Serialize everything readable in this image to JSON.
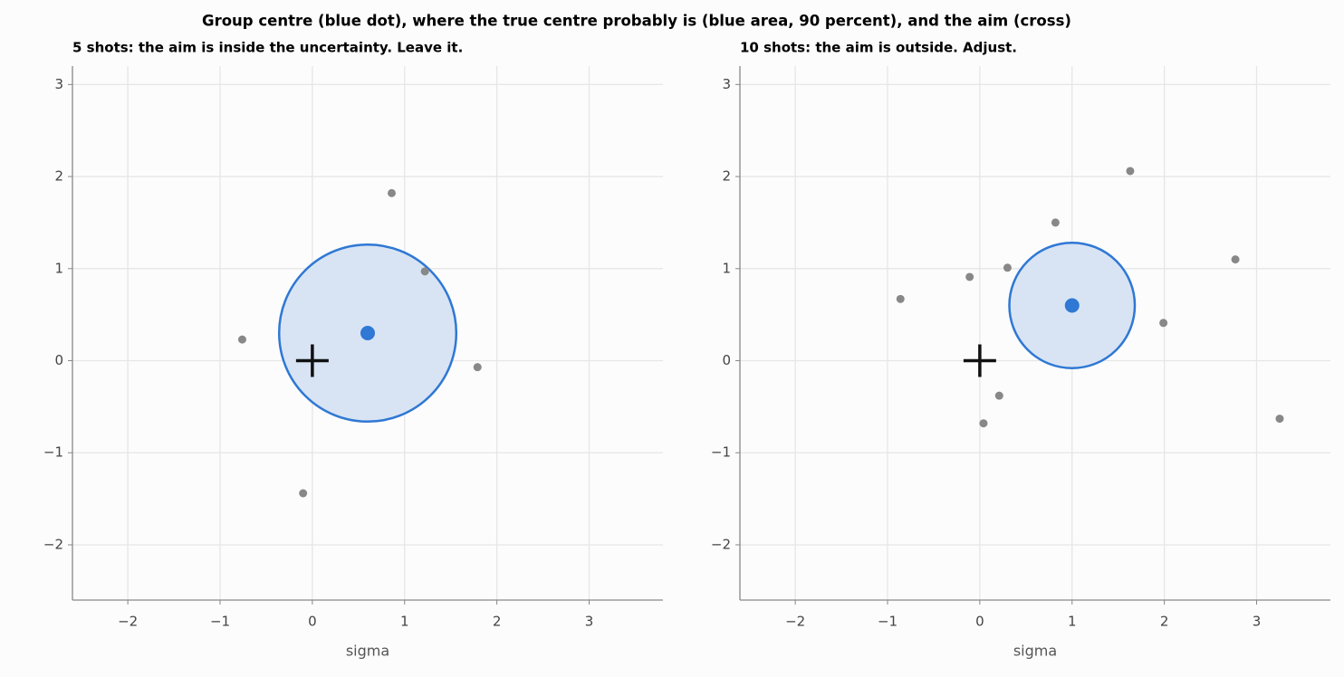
{
  "title": "Group centre (blue dot), where the true centre probably is (blue area, 90 percent), and the aim (cross)",
  "chart_data": [
    {
      "type": "scatter",
      "title": "5 shots: the aim is inside the uncertainty. Leave it.",
      "xlabel": "sigma",
      "xlim": [
        -2.6,
        3.8
      ],
      "ylim": [
        -2.6,
        3.2
      ],
      "xticks": [
        {
          "value": -2,
          "label": "−2"
        },
        {
          "value": -1,
          "label": "−1"
        },
        0,
        1,
        2,
        3
      ],
      "yticks": [
        {
          "value": -2,
          "label": "−2"
        },
        {
          "value": -1,
          "label": "−1"
        },
        0,
        1,
        2,
        3
      ],
      "grid": true,
      "shots": {
        "color": "#888888",
        "x": [
          -0.76,
          -0.1,
          0.86,
          1.22,
          1.79
        ],
        "y": [
          0.23,
          -1.44,
          1.82,
          0.97,
          -0.07
        ]
      },
      "centre": {
        "color": "#2f78d4",
        "x": 0.6,
        "y": 0.3
      },
      "radius": 0.96,
      "aim": {
        "color": "#111111",
        "x": 0,
        "y": 0
      }
    },
    {
      "type": "scatter",
      "title": "10 shots: the aim is outside. Adjust.",
      "xlabel": "sigma",
      "xlim": [
        -2.6,
        3.8
      ],
      "ylim": [
        -2.6,
        3.2
      ],
      "xticks": [
        {
          "value": -2,
          "label": "−2"
        },
        {
          "value": -1,
          "label": "−1"
        },
        0,
        1,
        2,
        3
      ],
      "yticks": [
        {
          "value": -2,
          "label": "−2"
        },
        {
          "value": -1,
          "label": "−1"
        },
        0,
        1,
        2,
        3
      ],
      "grid": true,
      "shots": {
        "color": "#888888",
        "x": [
          -0.86,
          -0.11,
          0.3,
          0.82,
          1.63,
          2.77,
          1.99,
          3.25,
          0.21,
          0.04
        ],
        "y": [
          0.67,
          0.91,
          1.01,
          1.5,
          2.06,
          1.1,
          0.41,
          -0.63,
          -0.38,
          -0.68
        ]
      },
      "centre": {
        "color": "#2f78d4",
        "x": 1.0,
        "y": 0.6
      },
      "radius": 0.68,
      "aim": {
        "color": "#111111",
        "x": 0,
        "y": 0
      }
    }
  ]
}
